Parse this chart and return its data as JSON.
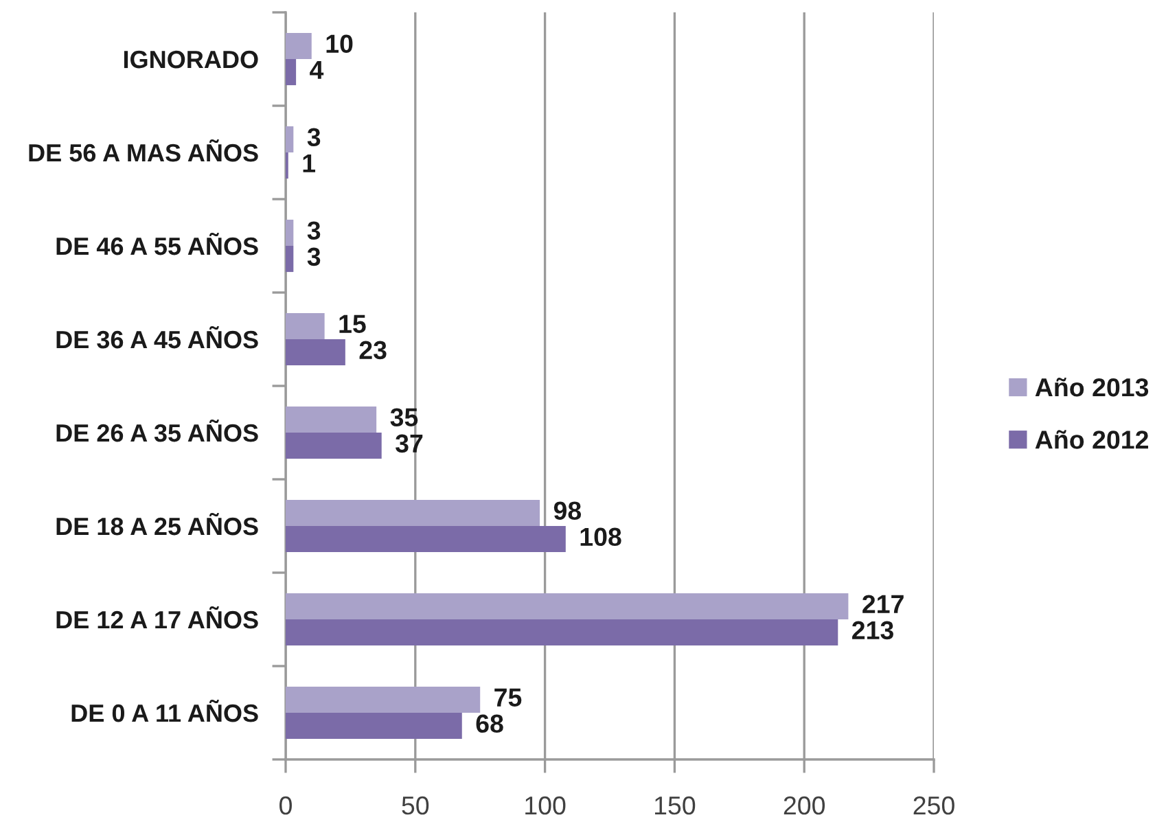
{
  "chart_data": {
    "type": "bar",
    "orientation": "horizontal",
    "categories": [
      "IGNORADO",
      "DE 56 A MAS AÑOS",
      "DE 46 A 55 AÑOS",
      "DE 36 A 45 AÑOS",
      "DE 26 A 35 AÑOS",
      "DE 18 A 25 AÑOS",
      "DE 12 A 17 AÑOS",
      "DE 0 A 11 AÑOS"
    ],
    "series": [
      {
        "name": "Año 2013",
        "color": "#a9a2c9",
        "values": [
          10,
          3,
          3,
          15,
          35,
          98,
          217,
          75
        ]
      },
      {
        "name": "Año 2012",
        "color": "#7b6ba8",
        "values": [
          4,
          1,
          3,
          23,
          37,
          108,
          213,
          68
        ]
      }
    ],
    "xlim": [
      0,
      250
    ],
    "xticks": [
      0,
      50,
      100,
      150,
      200,
      250
    ],
    "grid": "x",
    "legend": "right",
    "data_labels": true
  }
}
